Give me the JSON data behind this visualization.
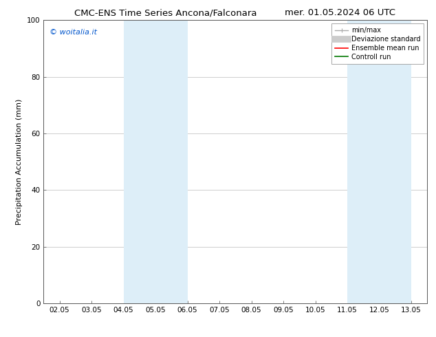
{
  "title_left": "CMC-ENS Time Series Ancona/Falconara",
  "title_right": "mer. 01.05.2024 06 UTC",
  "ylabel": "Precipitation Accumulation (mm)",
  "watermark": "© woitalia.it",
  "watermark_color": "#0055cc",
  "xlim_left": 1.5,
  "xlim_right": 13.5,
  "ylim_bottom": 0,
  "ylim_top": 100,
  "yticks": [
    0,
    20,
    40,
    60,
    80,
    100
  ],
  "xtick_labels": [
    "02.05",
    "03.05",
    "04.05",
    "05.05",
    "06.05",
    "07.05",
    "08.05",
    "09.05",
    "10.05",
    "11.05",
    "12.05",
    "13.05"
  ],
  "xtick_positions": [
    2,
    3,
    4,
    5,
    6,
    7,
    8,
    9,
    10,
    11,
    12,
    13
  ],
  "shaded_regions": [
    {
      "x_start": 4.0,
      "x_end": 6.0,
      "color": "#ddeef8"
    },
    {
      "x_start": 11.0,
      "x_end": 13.0,
      "color": "#ddeef8"
    }
  ],
  "legend_entries": [
    {
      "label": "min/max",
      "color": "#aaaaaa",
      "lw": 1.0,
      "ls": "-",
      "type": "minmax"
    },
    {
      "label": "Deviazione standard",
      "color": "#cccccc",
      "lw": 7,
      "ls": "-",
      "type": "band"
    },
    {
      "label": "Ensemble mean run",
      "color": "#ff0000",
      "lw": 1.2,
      "ls": "-",
      "type": "line"
    },
    {
      "label": "Controll run",
      "color": "#007700",
      "lw": 1.2,
      "ls": "-",
      "type": "line"
    }
  ],
  "background_color": "#ffffff",
  "grid_color": "#bbbbbb",
  "font_size_title": 9.5,
  "font_size_axis_label": 8,
  "font_size_tick": 7.5,
  "font_size_legend": 7,
  "font_size_watermark": 8
}
